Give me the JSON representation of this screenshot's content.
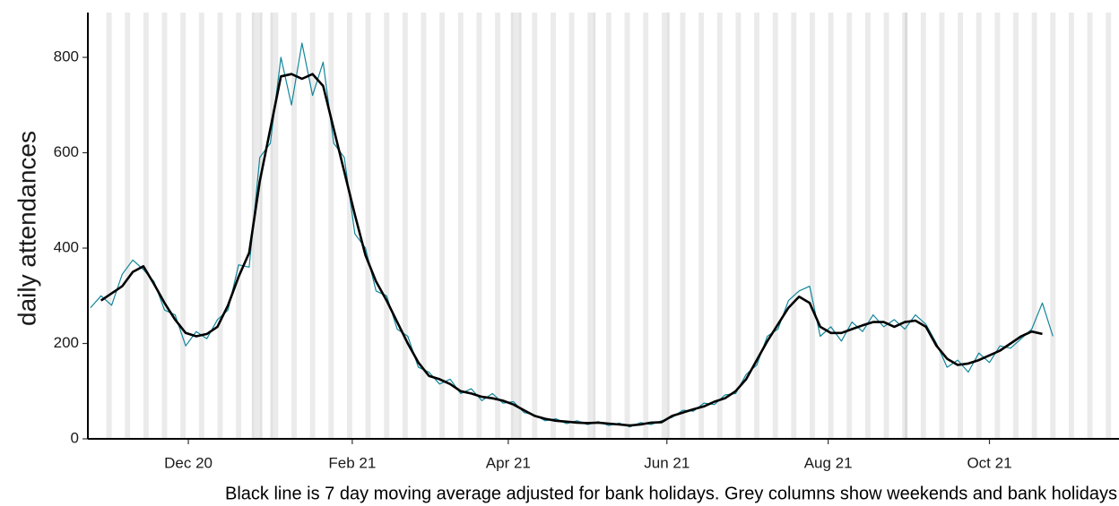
{
  "chart_data": {
    "type": "line",
    "ylabel": "daily attendances",
    "caption": "Black line is 7 day moving average adjusted for bank holidays. Grey columns show weekends and bank holidays",
    "x": [
      0,
      4,
      8,
      12,
      16,
      20,
      24,
      28,
      32,
      36,
      40,
      44,
      48,
      52,
      56,
      60,
      64,
      68,
      72,
      76,
      80,
      84,
      88,
      92,
      96,
      100,
      104,
      108,
      112,
      116,
      120,
      124,
      128,
      132,
      136,
      140,
      144,
      148,
      152,
      156,
      160,
      164,
      168,
      172,
      176,
      180,
      184,
      188,
      192,
      196,
      200,
      204,
      208,
      212,
      216,
      220,
      224,
      228,
      232,
      236,
      240,
      244,
      248,
      252,
      256,
      260,
      264,
      268,
      272,
      276,
      280,
      284,
      288,
      292,
      296,
      300,
      304,
      308,
      312,
      316,
      320,
      324,
      328,
      332,
      336,
      340,
      344,
      348,
      352,
      356,
      360,
      364
    ],
    "series": [
      {
        "color": "#12869a",
        "width": 1.2,
        "values": [
          275,
          300,
          280,
          345,
          375,
          355,
          330,
          270,
          260,
          195,
          225,
          210,
          250,
          270,
          365,
          360,
          590,
          620,
          800,
          700,
          830,
          720,
          790,
          620,
          590,
          430,
          400,
          310,
          300,
          230,
          215,
          150,
          140,
          115,
          125,
          95,
          105,
          80,
          95,
          75,
          78,
          55,
          50,
          38,
          42,
          32,
          38,
          30,
          36,
          28,
          33,
          25,
          34,
          30,
          38,
          45,
          60,
          58,
          75,
          72,
          92,
          95,
          135,
          155,
          215,
          230,
          290,
          310,
          320,
          215,
          235,
          205,
          245,
          225,
          260,
          235,
          250,
          230,
          260,
          240,
          200,
          150,
          165,
          140,
          180,
          160,
          195,
          190,
          210,
          230,
          285,
          215
        ]
      },
      {
        "color": "#000000",
        "width": 2.6,
        "values": [
          null,
          290,
          305,
          320,
          350,
          362,
          325,
          285,
          250,
          222,
          215,
          220,
          235,
          280,
          340,
          390,
          540,
          650,
          760,
          765,
          755,
          765,
          740,
          650,
          560,
          470,
          385,
          330,
          290,
          245,
          200,
          160,
          132,
          125,
          115,
          100,
          95,
          88,
          85,
          80,
          72,
          60,
          48,
          42,
          38,
          36,
          34,
          33,
          34,
          32,
          30,
          28,
          30,
          34,
          35,
          48,
          55,
          62,
          68,
          78,
          85,
          100,
          125,
          165,
          205,
          240,
          275,
          298,
          285,
          235,
          222,
          222,
          230,
          238,
          245,
          245,
          235,
          245,
          248,
          235,
          195,
          168,
          155,
          158,
          165,
          175,
          185,
          200,
          215,
          225,
          220,
          null
        ]
      }
    ],
    "weekends": [
      6,
      13,
      20,
      27,
      34,
      41,
      48,
      55,
      62,
      69,
      76,
      83,
      90,
      97,
      104,
      111,
      118,
      125,
      132,
      139,
      146,
      153,
      160,
      167,
      174,
      181,
      188,
      195,
      202,
      209,
      216,
      223,
      230,
      237,
      244,
      251,
      258,
      265,
      272,
      279,
      286,
      293,
      300,
      307,
      314,
      321,
      328,
      335,
      342,
      349,
      356,
      363,
      370,
      377,
      384
    ],
    "bank_holidays": [
      61,
      64,
      68,
      159,
      162,
      190,
      218,
      308
    ],
    "xlim": [
      -1,
      389
    ],
    "xticks": [
      {
        "value": 37,
        "label": "Dec 20"
      },
      {
        "value": 99,
        "label": "Feb 21"
      },
      {
        "value": 158,
        "label": "Apr 21"
      },
      {
        "value": 218,
        "label": "Jun 21"
      },
      {
        "value": 279,
        "label": "Aug 21"
      },
      {
        "value": 340,
        "label": "Oct 21"
      }
    ],
    "ylim": [
      0,
      894
    ],
    "yticks": [
      0,
      200,
      400,
      600,
      800
    ],
    "grid": false
  }
}
